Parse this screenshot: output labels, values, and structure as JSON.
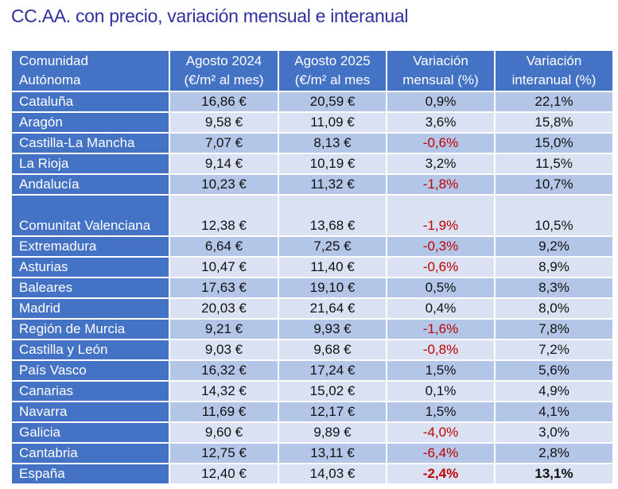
{
  "title": "CC.AA. con precio, variación mensual e interanual",
  "table": {
    "headers": [
      {
        "line1": "Comunidad",
        "line2": "Autónoma"
      },
      {
        "line1": "Agosto 2024",
        "line2": "(€/m² al mes)"
      },
      {
        "line1": "Agosto 2025",
        "line2": "(€/m² al mes"
      },
      {
        "line1": "Variación",
        "line2": "mensual (%)"
      },
      {
        "line1": "Variación",
        "line2": "interanual (%)"
      }
    ],
    "rows": [
      {
        "region": "Cataluña",
        "ago2024": "16,86 €",
        "ago2025": "20,59 €",
        "mensual": "0,9%",
        "interanual": "22,1%"
      },
      {
        "region": "Aragón",
        "ago2024": "9,58 €",
        "ago2025": "11,09 €",
        "mensual": "3,6%",
        "interanual": "15,8%"
      },
      {
        "region": "Castilla-La Mancha",
        "ago2024": "7,07 €",
        "ago2025": "8,13 €",
        "mensual": "-0,6%",
        "interanual": "15,0%"
      },
      {
        "region": "La Rioja",
        "ago2024": "9,14 €",
        "ago2025": "10,19 €",
        "mensual": "3,2%",
        "interanual": "11,5%"
      },
      {
        "region": "Andalucía",
        "ago2024": "10,23 €",
        "ago2025": "11,32 €",
        "mensual": "-1,8%",
        "interanual": "10,7%"
      },
      {
        "region": "Comunitat Valenciana",
        "ago2024": "12,38 €",
        "ago2025": "13,68 €",
        "mensual": "-1,9%",
        "interanual": "10,5%"
      },
      {
        "region": "Extremadura",
        "ago2024": "6,64 €",
        "ago2025": "7,25 €",
        "mensual": "-0,3%",
        "interanual": "9,2%"
      },
      {
        "region": "Asturias",
        "ago2024": "10,47 €",
        "ago2025": "11,40 €",
        "mensual": "-0,6%",
        "interanual": "8,9%"
      },
      {
        "region": "Baleares",
        "ago2024": "17,63 €",
        "ago2025": "19,10 €",
        "mensual": "0,5%",
        "interanual": "8,3%"
      },
      {
        "region": "Madrid",
        "ago2024": "20,03 €",
        "ago2025": "21,64 €",
        "mensual": "0,4%",
        "interanual": "8,0%"
      },
      {
        "region": "Región de Murcia",
        "ago2024": "9,21 €",
        "ago2025": "9,93 €",
        "mensual": "-1,6%",
        "interanual": "7,8%"
      },
      {
        "region": "Castilla y León",
        "ago2024": "9,03 €",
        "ago2025": "9,68 €",
        "mensual": "-0,8%",
        "interanual": "7,2%"
      },
      {
        "region": "País Vasco",
        "ago2024": "16,32 €",
        "ago2025": "17,24 €",
        "mensual": "1,5%",
        "interanual": "5,6%"
      },
      {
        "region": "Canarias",
        "ago2024": "14,32 €",
        "ago2025": "15,02 €",
        "mensual": "0,1%",
        "interanual": "4,9%"
      },
      {
        "region": "Navarra",
        "ago2024": "11,69 €",
        "ago2025": "12,17 €",
        "mensual": "1,5%",
        "interanual": "4,1%"
      },
      {
        "region": "Galicia",
        "ago2024": "9,60 €",
        "ago2025": "9,89 €",
        "mensual": "-4,0%",
        "interanual": "3,0%"
      },
      {
        "region": "Cantabria",
        "ago2024": "12,75 €",
        "ago2025": "13,11 €",
        "mensual": "-6,4%",
        "interanual": "2,8%"
      },
      {
        "region": "España",
        "ago2024": "12,40 €",
        "ago2025": "14,03 €",
        "mensual": "-2,4%",
        "interanual": "13,1%"
      }
    ]
  },
  "colors": {
    "title": "#2f2fa0",
    "header_bg": "#4472c4",
    "row_band_dark": "#b4c6e7",
    "row_band_light": "#d9e1f2",
    "negative": "#c00000"
  }
}
